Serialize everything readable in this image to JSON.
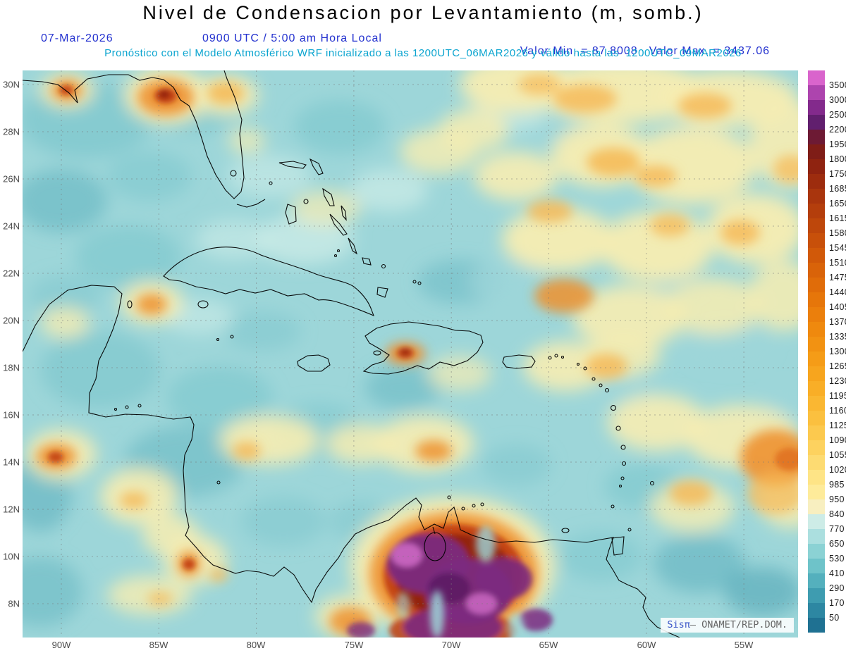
{
  "header": {
    "title": "Nivel de Condensacion por Levantamiento (m, somb.)",
    "date": "07-Mar-2026",
    "time": "0900 UTC / 5:00 am Hora Local",
    "min_label": "Valor Min. = 87.8008",
    "max_label": "Valor Max. = 3437.06",
    "forecast_line": "Pronóstico con el Modelo Atmosférico WRF inicializado a las 1200UTC_06MAR2026 y válido hasta las  1200UTC_09MAR2026"
  },
  "watermark": {
    "brand": "Sisπ",
    "text": "– ONAMET/REP.DOM."
  },
  "axes": {
    "lat_labels": [
      "30N",
      "28N",
      "26N",
      "24N",
      "22N",
      "20N",
      "18N",
      "16N",
      "14N",
      "12N",
      "10N",
      "8N"
    ],
    "lon_labels": [
      "90W",
      "85W",
      "80W",
      "75W",
      "70W",
      "65W",
      "60W",
      "55W"
    ]
  },
  "colorbar": {
    "levels": [
      "3500",
      "3000",
      "2500",
      "2200",
      "1950",
      "1800",
      "1750",
      "1685",
      "1650",
      "1615",
      "1580",
      "1545",
      "1510",
      "1475",
      "1440",
      "1405",
      "1370",
      "1335",
      "1300",
      "1265",
      "1230",
      "1195",
      "1160",
      "1125",
      "1090",
      "1055",
      "1020",
      "985",
      "950",
      "840",
      "770",
      "650",
      "530",
      "410",
      "290",
      "170",
      "50"
    ],
    "colors": [
      "#d964cc",
      "#ad44ae",
      "#832a8c",
      "#611f6e",
      "#6d1a34",
      "#7f1d17",
      "#8f2310",
      "#9d2c0e",
      "#a9350d",
      "#b43e0c",
      "#be470b",
      "#c8500a",
      "#d15909",
      "#d96309",
      "#e06c09",
      "#e6760a",
      "#eb7f0c",
      "#ef890e",
      "#f29212",
      "#f59c17",
      "#f7a51e",
      "#f9ae27",
      "#fab732",
      "#fbc03f",
      "#fcc94e",
      "#fdd25f",
      "#fddb72",
      "#fee486",
      "#feeb9a",
      "#f8efc0",
      "#cdecE7",
      "#abdfdf",
      "#8bd2d4",
      "#6ec3c9",
      "#54b0bd",
      "#3e9cb0",
      "#2d87a2",
      "#1f7192"
    ]
  },
  "chart_data": {
    "type": "heatmap",
    "title": "Nivel de Condensacion por Levantamiento (m, somb.)",
    "units": "m",
    "valid_time": "07-Mar-2026 0900 UTC / 5:00 am Hora Local",
    "model": "WRF inicializado 1200UTC_06MAR2026, válido hasta 1200UTC_09MAR2026",
    "source": "ONAMET/REP.DOM.",
    "value_min": 87.8008,
    "value_max": 3437.06,
    "lon_range_deg_west": [
      92,
      52.2
    ],
    "lat_range_deg_north": [
      6.6,
      30.6
    ],
    "lon_ticks_deg_west": [
      90,
      85,
      80,
      75,
      70,
      65,
      60,
      55
    ],
    "lat_ticks_deg_north": [
      30,
      28,
      26,
      24,
      22,
      20,
      18,
      16,
      14,
      12,
      10,
      8
    ],
    "contour_levels_m": [
      50,
      170,
      290,
      410,
      530,
      650,
      770,
      840,
      950,
      985,
      1020,
      1055,
      1090,
      1125,
      1160,
      1195,
      1230,
      1265,
      1300,
      1335,
      1370,
      1405,
      1440,
      1475,
      1510,
      1545,
      1580,
      1615,
      1650,
      1685,
      1750,
      1800,
      1950,
      2200,
      2500,
      3000,
      3500
    ],
    "legend_position": "right",
    "notable_features": [
      "Most of Gulf of Mexico and Caribbean Sea in cyan/teal shades (~400-800 m)",
      "Large pale-yellow field (~850-1100 m) over central and eastern Atlantic with embedded orange patches (~1100-1500 m)",
      "Absolute maximum (purple/magenta > 2500 m, up to 3437 m) over interior NW Venezuela / Colombia near bottom center",
      "Orange-red local maxima: Florida panhandle coast, NE Gulf, Haiti, NE Yucatan, Guatemala Pacific coast, Costa Rica, far-east map edge",
      "Minimum value 87.8 m"
    ],
    "palette": {
      "base": "#9dd6d9",
      "paleCyan": "#cdece7",
      "midTeal": "#7cc6cd",
      "teal": "#5fb3c0",
      "darkTeal": "#3f9db0",
      "paleYellow": "#f7edb2",
      "yellow": "#fbe38a",
      "lightOrange": "#f6b854",
      "orange": "#ee9230",
      "deepOrange": "#e0701c",
      "red": "#c03c10",
      "darkRed": "#8e1f10",
      "purple": "#7c2a80",
      "darkPurple": "#5a1b62",
      "orchid": "#d06cc8"
    },
    "field_blobs": [
      [
        90,
        70,
        95,
        55,
        "midTeal",
        "soft",
        0.7
      ],
      [
        240,
        50,
        70,
        40,
        "midTeal",
        "soft",
        0.6
      ],
      [
        55,
        185,
        65,
        45,
        "teal",
        "soft",
        0.55
      ],
      [
        150,
        265,
        75,
        45,
        "midTeal",
        "soft",
        0.6
      ],
      [
        110,
        425,
        85,
        55,
        "midTeal",
        "soft",
        0.65
      ],
      [
        280,
        465,
        75,
        45,
        "midTeal",
        "soft",
        0.6
      ],
      [
        230,
        555,
        85,
        50,
        "teal",
        "soft",
        0.5
      ],
      [
        420,
        510,
        65,
        38,
        "midTeal",
        "soft",
        0.55
      ],
      [
        620,
        300,
        60,
        32,
        "teal",
        "soft",
        0.45
      ],
      [
        540,
        450,
        55,
        32,
        "teal",
        "soft",
        0.5
      ],
      [
        960,
        700,
        65,
        42,
        "teal",
        "soft",
        0.6
      ],
      [
        1050,
        740,
        55,
        35,
        "darkTeal",
        "soft",
        0.5
      ],
      [
        880,
        590,
        55,
        32,
        "midTeal",
        "soft",
        0.6
      ],
      [
        450,
        80,
        65,
        38,
        "midTeal",
        "soft",
        0.6
      ],
      [
        25,
        600,
        45,
        55,
        "teal",
        "soft",
        0.6
      ],
      [
        340,
        370,
        55,
        28,
        "midTeal",
        "soft",
        0.5
      ],
      [
        180,
        150,
        60,
        35,
        "midTeal",
        "soft",
        0.55
      ],
      [
        700,
        560,
        50,
        30,
        "midTeal",
        "soft",
        0.5
      ],
      [
        820,
        690,
        60,
        35,
        "midTeal",
        "soft",
        0.55
      ],
      [
        60,
        320,
        50,
        30,
        "midTeal",
        "soft",
        0.5
      ],
      [
        370,
        640,
        60,
        35,
        "midTeal",
        "soft",
        0.5
      ],
      [
        480,
        640,
        45,
        30,
        "midTeal",
        "soft",
        0.45
      ],
      [
        25,
        740,
        60,
        50,
        "teal",
        "soft",
        0.5
      ],
      [
        400,
        240,
        70,
        35,
        "paleCyan",
        "soft",
        0.75
      ],
      [
        520,
        170,
        55,
        30,
        "paleCyan",
        "soft",
        0.7
      ],
      [
        350,
        150,
        60,
        30,
        "paleCyan",
        "soft",
        0.6
      ],
      [
        250,
        350,
        50,
        25,
        "paleCyan",
        "soft",
        0.6
      ],
      [
        690,
        60,
        55,
        28,
        "paleCyan",
        "soft",
        0.6
      ],
      [
        300,
        240,
        55,
        28,
        "paleCyan",
        "soft",
        0.6
      ],
      [
        950,
        95,
        50,
        22,
        "base",
        "soft",
        0.9
      ],
      [
        770,
        90,
        40,
        22,
        "base",
        "soft",
        0.8
      ],
      [
        690,
        300,
        55,
        30,
        "base",
        "soft",
        0.8
      ],
      [
        1000,
        390,
        60,
        28,
        "base",
        "soft",
        0.85
      ],
      [
        860,
        460,
        40,
        22,
        "base",
        "soft",
        0.8
      ],
      [
        1095,
        480,
        40,
        30,
        "base",
        "soft",
        0.8
      ],
      [
        930,
        300,
        40,
        20,
        "base",
        "soft",
        0.7
      ],
      [
        700,
        20,
        80,
        40,
        "paleYellow",
        "soft",
        0.95
      ],
      [
        850,
        30,
        120,
        45,
        "paleYellow",
        "soft",
        0.95
      ],
      [
        1000,
        40,
        100,
        40,
        "paleYellow",
        "soft",
        0.95
      ],
      [
        1090,
        105,
        60,
        60,
        "paleYellow",
        "soft",
        0.9
      ],
      [
        950,
        135,
        90,
        55,
        "paleYellow",
        "soft",
        0.95
      ],
      [
        820,
        120,
        70,
        45,
        "paleYellow",
        "soft",
        0.95
      ],
      [
        700,
        150,
        60,
        35,
        "paleYellow",
        "soft",
        0.9
      ],
      [
        640,
        85,
        50,
        30,
        "paleYellow",
        "soft",
        0.85
      ],
      [
        590,
        115,
        55,
        32,
        "paleYellow",
        "soft",
        0.8
      ],
      [
        760,
        240,
        80,
        45,
        "paleYellow",
        "soft",
        0.95
      ],
      [
        900,
        250,
        80,
        50,
        "paleYellow",
        "soft",
        0.95
      ],
      [
        1040,
        225,
        70,
        50,
        "paleYellow",
        "soft",
        0.95
      ],
      [
        860,
        350,
        80,
        45,
        "paleYellow",
        "soft",
        0.9
      ],
      [
        980,
        335,
        70,
        40,
        "paleYellow",
        "soft",
        0.85
      ],
      [
        1080,
        320,
        50,
        50,
        "paleYellow",
        "soft",
        0.85
      ],
      [
        770,
        420,
        60,
        35,
        "paleYellow",
        "soft",
        0.9
      ],
      [
        850,
        405,
        55,
        30,
        "paleYellow",
        "soft",
        0.85
      ],
      [
        900,
        500,
        70,
        40,
        "paleYellow",
        "soft",
        0.9
      ],
      [
        1020,
        520,
        80,
        45,
        "paleYellow",
        "soft",
        0.9
      ],
      [
        1090,
        600,
        50,
        50,
        "paleYellow",
        "soft",
        0.85
      ],
      [
        950,
        620,
        60,
        35,
        "paleYellow",
        "soft",
        0.8
      ],
      [
        430,
        195,
        50,
        25,
        "paleYellow",
        "soft",
        0.7
      ],
      [
        350,
        525,
        70,
        35,
        "paleYellow",
        "soft",
        0.9
      ],
      [
        480,
        530,
        50,
        28,
        "paleYellow",
        "soft",
        0.85
      ],
      [
        570,
        530,
        70,
        40,
        "paleYellow",
        "soft",
        0.9
      ],
      [
        620,
        430,
        45,
        25,
        "paleYellow",
        "soft",
        0.7
      ],
      [
        183,
        330,
        45,
        30,
        "paleYellow",
        "soft",
        0.9
      ],
      [
        60,
        358,
        35,
        22,
        "paleYellow",
        "soft",
        0.8
      ],
      [
        55,
        545,
        50,
        35,
        "paleYellow",
        "soft",
        0.9
      ],
      [
        165,
        605,
        55,
        40,
        "paleYellow",
        "soft",
        0.9
      ],
      [
        210,
        660,
        40,
        30,
        "paleYellow",
        "soft",
        0.85
      ],
      [
        245,
        695,
        45,
        35,
        "paleYellow",
        "soft",
        0.9
      ],
      [
        180,
        745,
        60,
        28,
        "paleYellow",
        "soft",
        0.8
      ],
      [
        610,
        705,
        145,
        100,
        "paleYellow",
        "soft",
        0.95
      ],
      [
        460,
        775,
        45,
        30,
        "paleYellow",
        "soft",
        0.85
      ],
      [
        205,
        35,
        60,
        40,
        "paleYellow",
        "soft",
        0.95
      ],
      [
        290,
        35,
        45,
        28,
        "paleYellow",
        "soft",
        0.9
      ],
      [
        63,
        28,
        38,
        24,
        "paleYellow",
        "soft",
        0.9
      ],
      [
        318,
        100,
        26,
        18,
        "paleYellow",
        "soft",
        0.75
      ],
      [
        203,
        38,
        40,
        26,
        "orange",
        "mid",
        0.9
      ],
      [
        288,
        32,
        26,
        16,
        "lightOrange",
        "mid",
        0.85
      ],
      [
        63,
        28,
        22,
        15,
        "orange",
        "mid",
        0.9
      ],
      [
        798,
        40,
        45,
        20,
        "lightOrange",
        "mid",
        0.8
      ],
      [
        968,
        50,
        38,
        18,
        "lightOrange",
        "mid",
        0.8
      ],
      [
        838,
        130,
        38,
        20,
        "lightOrange",
        "mid",
        0.85
      ],
      [
        898,
        150,
        30,
        15,
        "lightOrange",
        "mid",
        0.8
      ],
      [
        1018,
        230,
        28,
        18,
        "lightOrange",
        "mid",
        0.8
      ],
      [
        748,
        200,
        32,
        16,
        "lightOrange",
        "mid",
        0.8
      ],
      [
        918,
        220,
        28,
        16,
        "lightOrange",
        "mid",
        0.75
      ],
      [
        768,
        320,
        42,
        24,
        "orange",
        "mid",
        0.85
      ],
      [
        828,
        420,
        30,
        18,
        "lightOrange",
        "mid",
        0.8
      ],
      [
        1068,
        550,
        50,
        40,
        "orange",
        "mid",
        0.9
      ],
      [
        948,
        600,
        30,
        18,
        "lightOrange",
        "mid",
        0.8
      ],
      [
        583,
        540,
        26,
        15,
        "orange",
        "mid",
        0.85
      ],
      [
        318,
        540,
        20,
        13,
        "lightOrange",
        "mid",
        0.8
      ],
      [
        543,
        402,
        28,
        16,
        "orange",
        "mid",
        0.9
      ],
      [
        183,
        332,
        22,
        15,
        "orange",
        "mid",
        0.85
      ],
      [
        48,
        548,
        28,
        18,
        "orange",
        "mid",
        0.9
      ],
      [
        158,
        610,
        20,
        12,
        "lightOrange",
        "mid",
        0.8
      ],
      [
        236,
        700,
        16,
        18,
        "orange",
        "mid",
        0.9
      ],
      [
        278,
        716,
        13,
        9,
        "lightOrange",
        "mid",
        0.8
      ],
      [
        195,
        750,
        18,
        10,
        "lightOrange",
        "mid",
        0.7
      ],
      [
        608,
        660,
        32,
        18,
        "orange",
        "mid",
        0.85
      ],
      [
        612,
        715,
        120,
        88,
        "orange",
        "mid",
        0.9
      ],
      [
        465,
        782,
        30,
        20,
        "orange",
        "mid",
        0.85
      ],
      [
        1068,
        600,
        40,
        30,
        "lightOrange",
        "mid",
        0.7
      ],
      [
        733,
        20,
        30,
        15,
        "lightOrange",
        "mid",
        0.7
      ],
      [
        1090,
        140,
        25,
        20,
        "lightOrange",
        "mid",
        0.7
      ],
      [
        203,
        36,
        16,
        11,
        "red",
        "core",
        0.9
      ],
      [
        201,
        34,
        8,
        6,
        "darkRed",
        "core",
        0.9
      ],
      [
        62,
        28,
        10,
        7,
        "red",
        "core",
        0.85
      ],
      [
        543,
        401,
        12,
        8,
        "red",
        "core",
        0.9
      ],
      [
        543,
        400,
        6,
        4,
        "darkRed",
        "core",
        0.9
      ],
      [
        236,
        701,
        9,
        8,
        "red",
        "core",
        0.9
      ],
      [
        47,
        549,
        11,
        8,
        "red",
        "core",
        0.85
      ],
      [
        1087,
        552,
        20,
        16,
        "deepOrange",
        "core",
        0.85
      ],
      [
        612,
        716,
        100,
        72,
        "red",
        "core",
        0.9
      ],
      [
        613,
        718,
        84,
        60,
        "darkRed",
        "core",
        0.92
      ],
      [
        610,
        795,
        90,
        30,
        "red",
        "core",
        0.85
      ],
      [
        575,
        700,
        58,
        42,
        "purple",
        "core",
        0.95
      ],
      [
        633,
        740,
        62,
        46,
        "purple",
        "core",
        0.95
      ],
      [
        683,
        722,
        40,
        30,
        "purple",
        "core",
        0.9
      ],
      [
        610,
        790,
        70,
        28,
        "purple",
        "core",
        0.9
      ],
      [
        545,
        688,
        22,
        17,
        "orchid",
        "core",
        0.85
      ],
      [
        651,
        757,
        22,
        15,
        "orchid",
        "core",
        0.8
      ],
      [
        605,
        735,
        30,
        22,
        "darkPurple",
        "core",
        0.85
      ],
      [
        480,
        795,
        20,
        12,
        "purple",
        "core",
        0.8
      ],
      [
        728,
        780,
        24,
        16,
        "purple",
        "core",
        0.85
      ],
      [
        588,
        772,
        10,
        34,
        "base",
        "top",
        0.85
      ],
      [
        657,
        672,
        14,
        26,
        "base",
        "top",
        0.8
      ],
      [
        700,
        790,
        12,
        20,
        "base",
        "top",
        0.7
      ],
      [
        540,
        760,
        10,
        20,
        "base",
        "top",
        0.6
      ]
    ]
  }
}
